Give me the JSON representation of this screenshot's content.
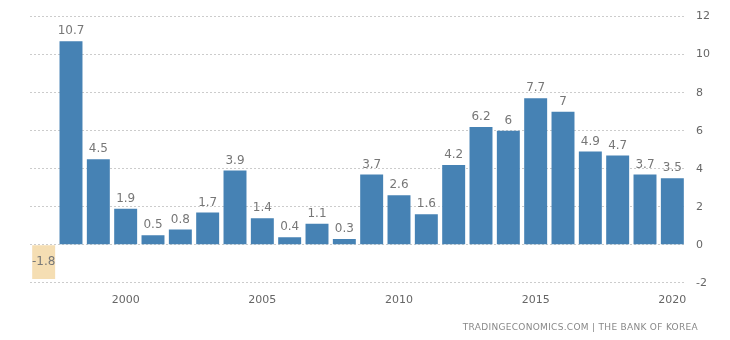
{
  "chart_data": {
    "type": "bar",
    "categories": [
      null,
      null,
      null,
      "2000",
      null,
      null,
      null,
      null,
      "2005",
      null,
      null,
      null,
      null,
      "2010",
      null,
      null,
      null,
      null,
      "2015",
      null,
      null,
      null,
      null,
      "2020"
    ],
    "values": [
      -1.8,
      10.7,
      4.5,
      1.9,
      0.5,
      0.8,
      1.7,
      3.9,
      1.4,
      0.4,
      1.1,
      0.3,
      3.7,
      2.6,
      1.6,
      4.2,
      6.2,
      6,
      7.7,
      7,
      4.9,
      4.7,
      3.7,
      3.5
    ],
    "colors": [
      "#f5deb3",
      "#4682b4",
      "#4682b4",
      "#4682b4",
      "#4682b4",
      "#4682b4",
      "#4682b4",
      "#4682b4",
      "#4682b4",
      "#4682b4",
      "#4682b4",
      "#4682b4",
      "#4682b4",
      "#4682b4",
      "#4682b4",
      "#4682b4",
      "#4682b4",
      "#4682b4",
      "#4682b4",
      "#4682b4",
      "#4682b4",
      "#4682b4",
      "#4682b4",
      "#4682b4"
    ],
    "ylim": [
      -2,
      12
    ],
    "yticks": [
      -2,
      0,
      2,
      4,
      6,
      8,
      10,
      12
    ],
    "grid": true,
    "data_labels": true,
    "annotations": [
      "TRADINGECONOMICS.COM | THE BANK OF KOREA"
    ]
  }
}
